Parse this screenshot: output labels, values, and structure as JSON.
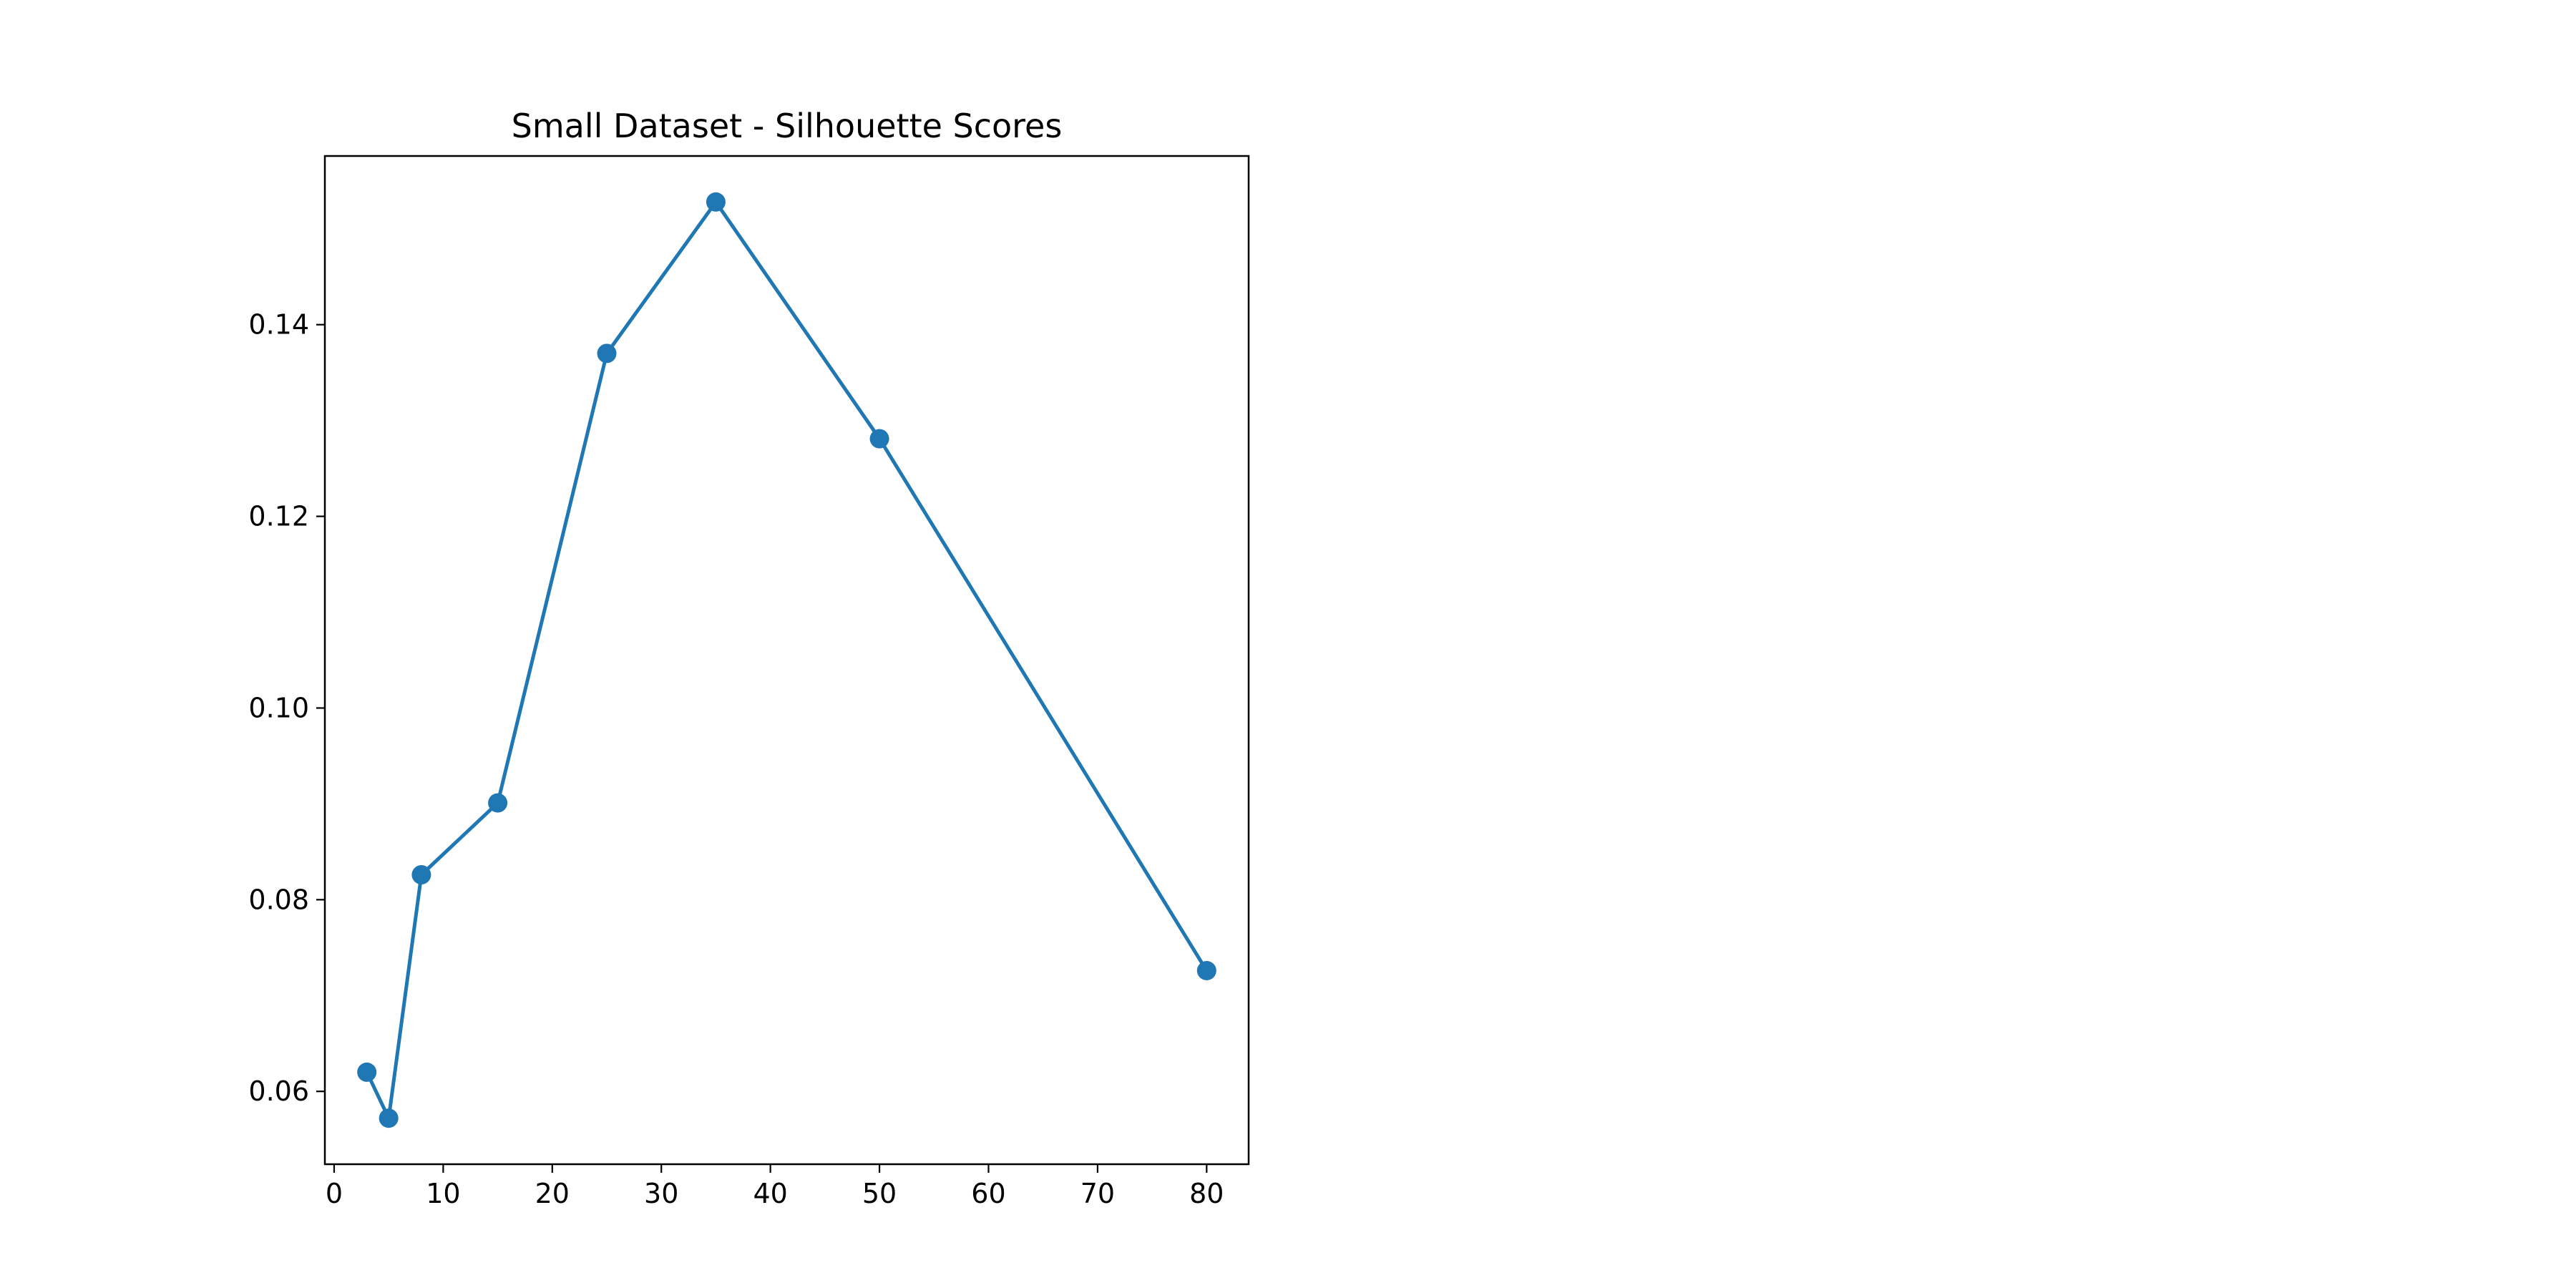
{
  "chart_data": {
    "type": "line",
    "title": "Small Dataset - Silhouette Scores",
    "xlabel": "",
    "ylabel": "",
    "x": [
      3,
      5,
      8,
      15,
      25,
      35,
      50,
      80
    ],
    "series": [
      {
        "values": [
          0.062,
          0.0572,
          0.0826,
          0.0901,
          0.137,
          0.1528,
          0.1281,
          0.0726
        ]
      }
    ],
    "xlim": [
      -0.85,
      83.85
    ],
    "ylim": [
      0.0524,
      0.1576
    ],
    "xticks": [
      0,
      10,
      20,
      30,
      40,
      50,
      60,
      70,
      80
    ],
    "yticks": [
      0.06,
      0.08,
      0.1,
      0.12,
      0.14
    ],
    "xtick_labels": [
      "0",
      "10",
      "20",
      "30",
      "40",
      "50",
      "60",
      "70",
      "80"
    ],
    "ytick_labels": [
      "0.06",
      "0.08",
      "0.10",
      "0.12",
      "0.14"
    ],
    "grid": false,
    "legend": "none",
    "colors": {
      "series": "#1f77b4",
      "axes": "#000000"
    }
  }
}
